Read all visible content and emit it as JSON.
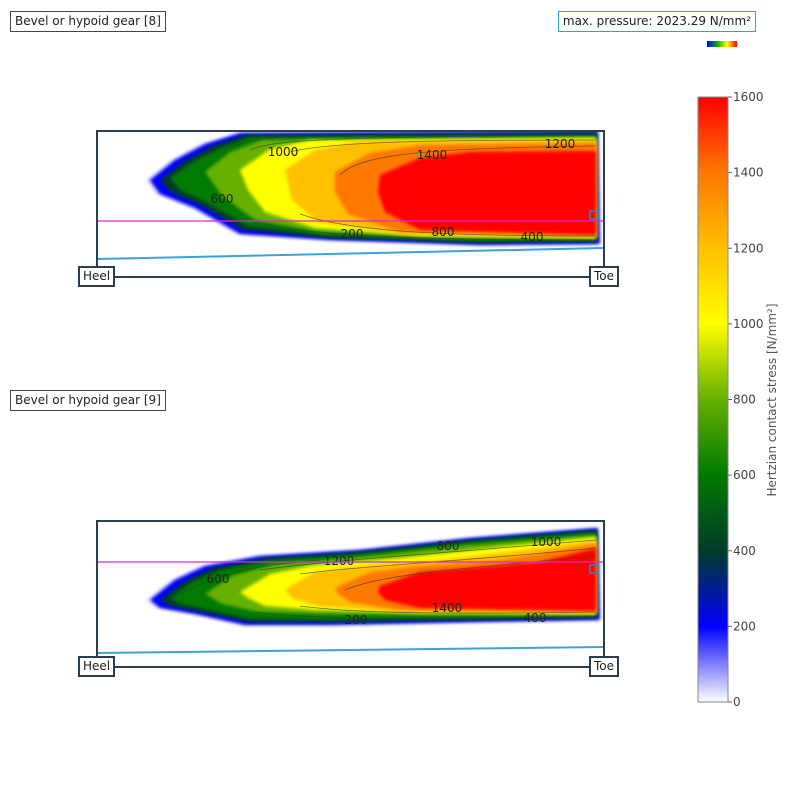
{
  "chart_data": {
    "type": "heatmap",
    "max_pressure_text": "max. pressure: 2023.29 N/mm²",
    "colorbar": {
      "title": "Hertzian contact stress [N/mm²]",
      "range": [
        0,
        1600
      ],
      "ticks": [
        "0",
        "200",
        "400",
        "600",
        "800",
        "1000",
        "1200",
        "1400",
        "1600"
      ],
      "colors": {
        "c0": "#ffffff",
        "c200": "#0000ff",
        "c400": "#003b2a",
        "c600": "#007a00",
        "c800": "#66b000",
        "c1000": "#ffff00",
        "c1200": "#ffc000",
        "c1400": "#ff7800",
        "c1600": "#ff0000"
      }
    },
    "panels": [
      {
        "title": "Bevel or hypoid gear [8]",
        "heel_label": "Heel",
        "toe_label": "Toe",
        "contour_labels": [
          {
            "text": "1000",
            "value": 1000
          },
          {
            "text": "1400",
            "value": 1400
          },
          {
            "text": "1200",
            "value": 1200
          },
          {
            "text": "600",
            "value": 600
          },
          {
            "text": "200",
            "value": 200
          },
          {
            "text": "800",
            "value": 800
          },
          {
            "text": "400",
            "value": 400
          }
        ]
      },
      {
        "title": "Bevel or hypoid gear [9]",
        "heel_label": "Heel",
        "toe_label": "Toe",
        "contour_labels": [
          {
            "text": "800",
            "value": 800
          },
          {
            "text": "1000",
            "value": 1000
          },
          {
            "text": "1200",
            "value": 1200
          },
          {
            "text": "600",
            "value": 600
          },
          {
            "text": "1400",
            "value": 1400
          },
          {
            "text": "200",
            "value": 200
          },
          {
            "text": "400",
            "value": 400
          }
        ]
      }
    ]
  }
}
